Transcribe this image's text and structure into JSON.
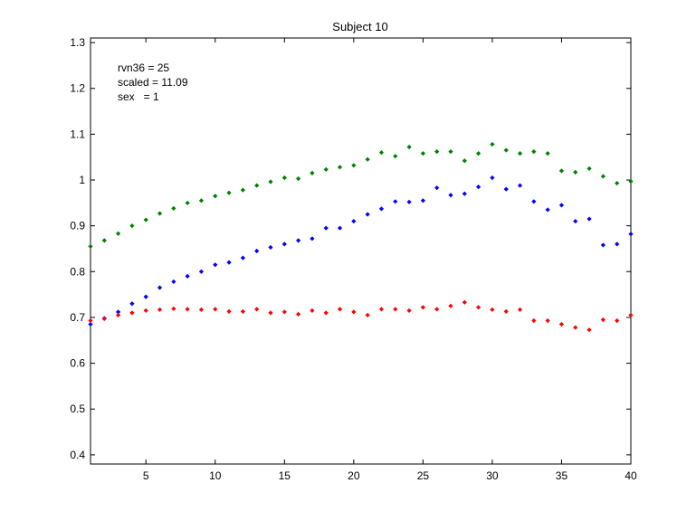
{
  "chart_data": {
    "type": "scatter",
    "title": "Subject 10",
    "xlabel": "",
    "ylabel": "",
    "xlim": [
      1,
      40
    ],
    "ylim": [
      0.38,
      1.31
    ],
    "xticks": [
      "5",
      "10",
      "15",
      "20",
      "25",
      "30",
      "35",
      "40"
    ],
    "yticks": [
      "0.4",
      "0.5",
      "0.6",
      "0.7",
      "0.8",
      "0.9",
      "1",
      "1.1",
      "1.2",
      "1.3"
    ],
    "grid": false,
    "legend": "none",
    "annotations": [
      "rvn36 = 25",
      "scaled = 11.09",
      "sex   = 1"
    ],
    "x": [
      1,
      2,
      3,
      4,
      5,
      6,
      7,
      8,
      9,
      10,
      11,
      12,
      13,
      14,
      15,
      16,
      17,
      18,
      19,
      20,
      21,
      22,
      23,
      24,
      25,
      26,
      27,
      28,
      29,
      30,
      31,
      32,
      33,
      34,
      35,
      36,
      37,
      38,
      39,
      40
    ],
    "series": [
      {
        "color": "#008000",
        "values": [
          0.855,
          0.868,
          0.883,
          0.9,
          0.913,
          0.927,
          0.938,
          0.95,
          0.955,
          0.965,
          0.972,
          0.978,
          0.988,
          0.996,
          1.005,
          1.003,
          1.015,
          1.023,
          1.028,
          1.032,
          1.045,
          1.06,
          1.052,
          1.072,
          1.058,
          1.062,
          1.062,
          1.042,
          1.058,
          1.078,
          1.065,
          1.058,
          1.062,
          1.058,
          1.02,
          1.017,
          1.025,
          1.008,
          0.993,
          0.997
        ]
      },
      {
        "color": "#0000ff",
        "values": [
          0.685,
          0.698,
          0.712,
          0.73,
          0.745,
          0.765,
          0.778,
          0.79,
          0.8,
          0.815,
          0.82,
          0.83,
          0.845,
          0.853,
          0.86,
          0.868,
          0.872,
          0.895,
          0.895,
          0.91,
          0.925,
          0.937,
          0.953,
          0.952,
          0.955,
          0.983,
          0.967,
          0.97,
          0.985,
          1.005,
          0.98,
          0.988,
          0.953,
          0.935,
          0.945,
          0.91,
          0.915,
          0.858,
          0.86,
          0.882
        ]
      },
      {
        "color": "#ff0000",
        "values": [
          0.693,
          0.697,
          0.705,
          0.71,
          0.715,
          0.717,
          0.719,
          0.718,
          0.717,
          0.718,
          0.713,
          0.713,
          0.718,
          0.71,
          0.712,
          0.707,
          0.715,
          0.71,
          0.718,
          0.712,
          0.705,
          0.718,
          0.718,
          0.715,
          0.722,
          0.718,
          0.725,
          0.733,
          0.722,
          0.717,
          0.713,
          0.717,
          0.693,
          0.693,
          0.685,
          0.678,
          0.673,
          0.695,
          0.693,
          0.705
        ]
      }
    ]
  }
}
